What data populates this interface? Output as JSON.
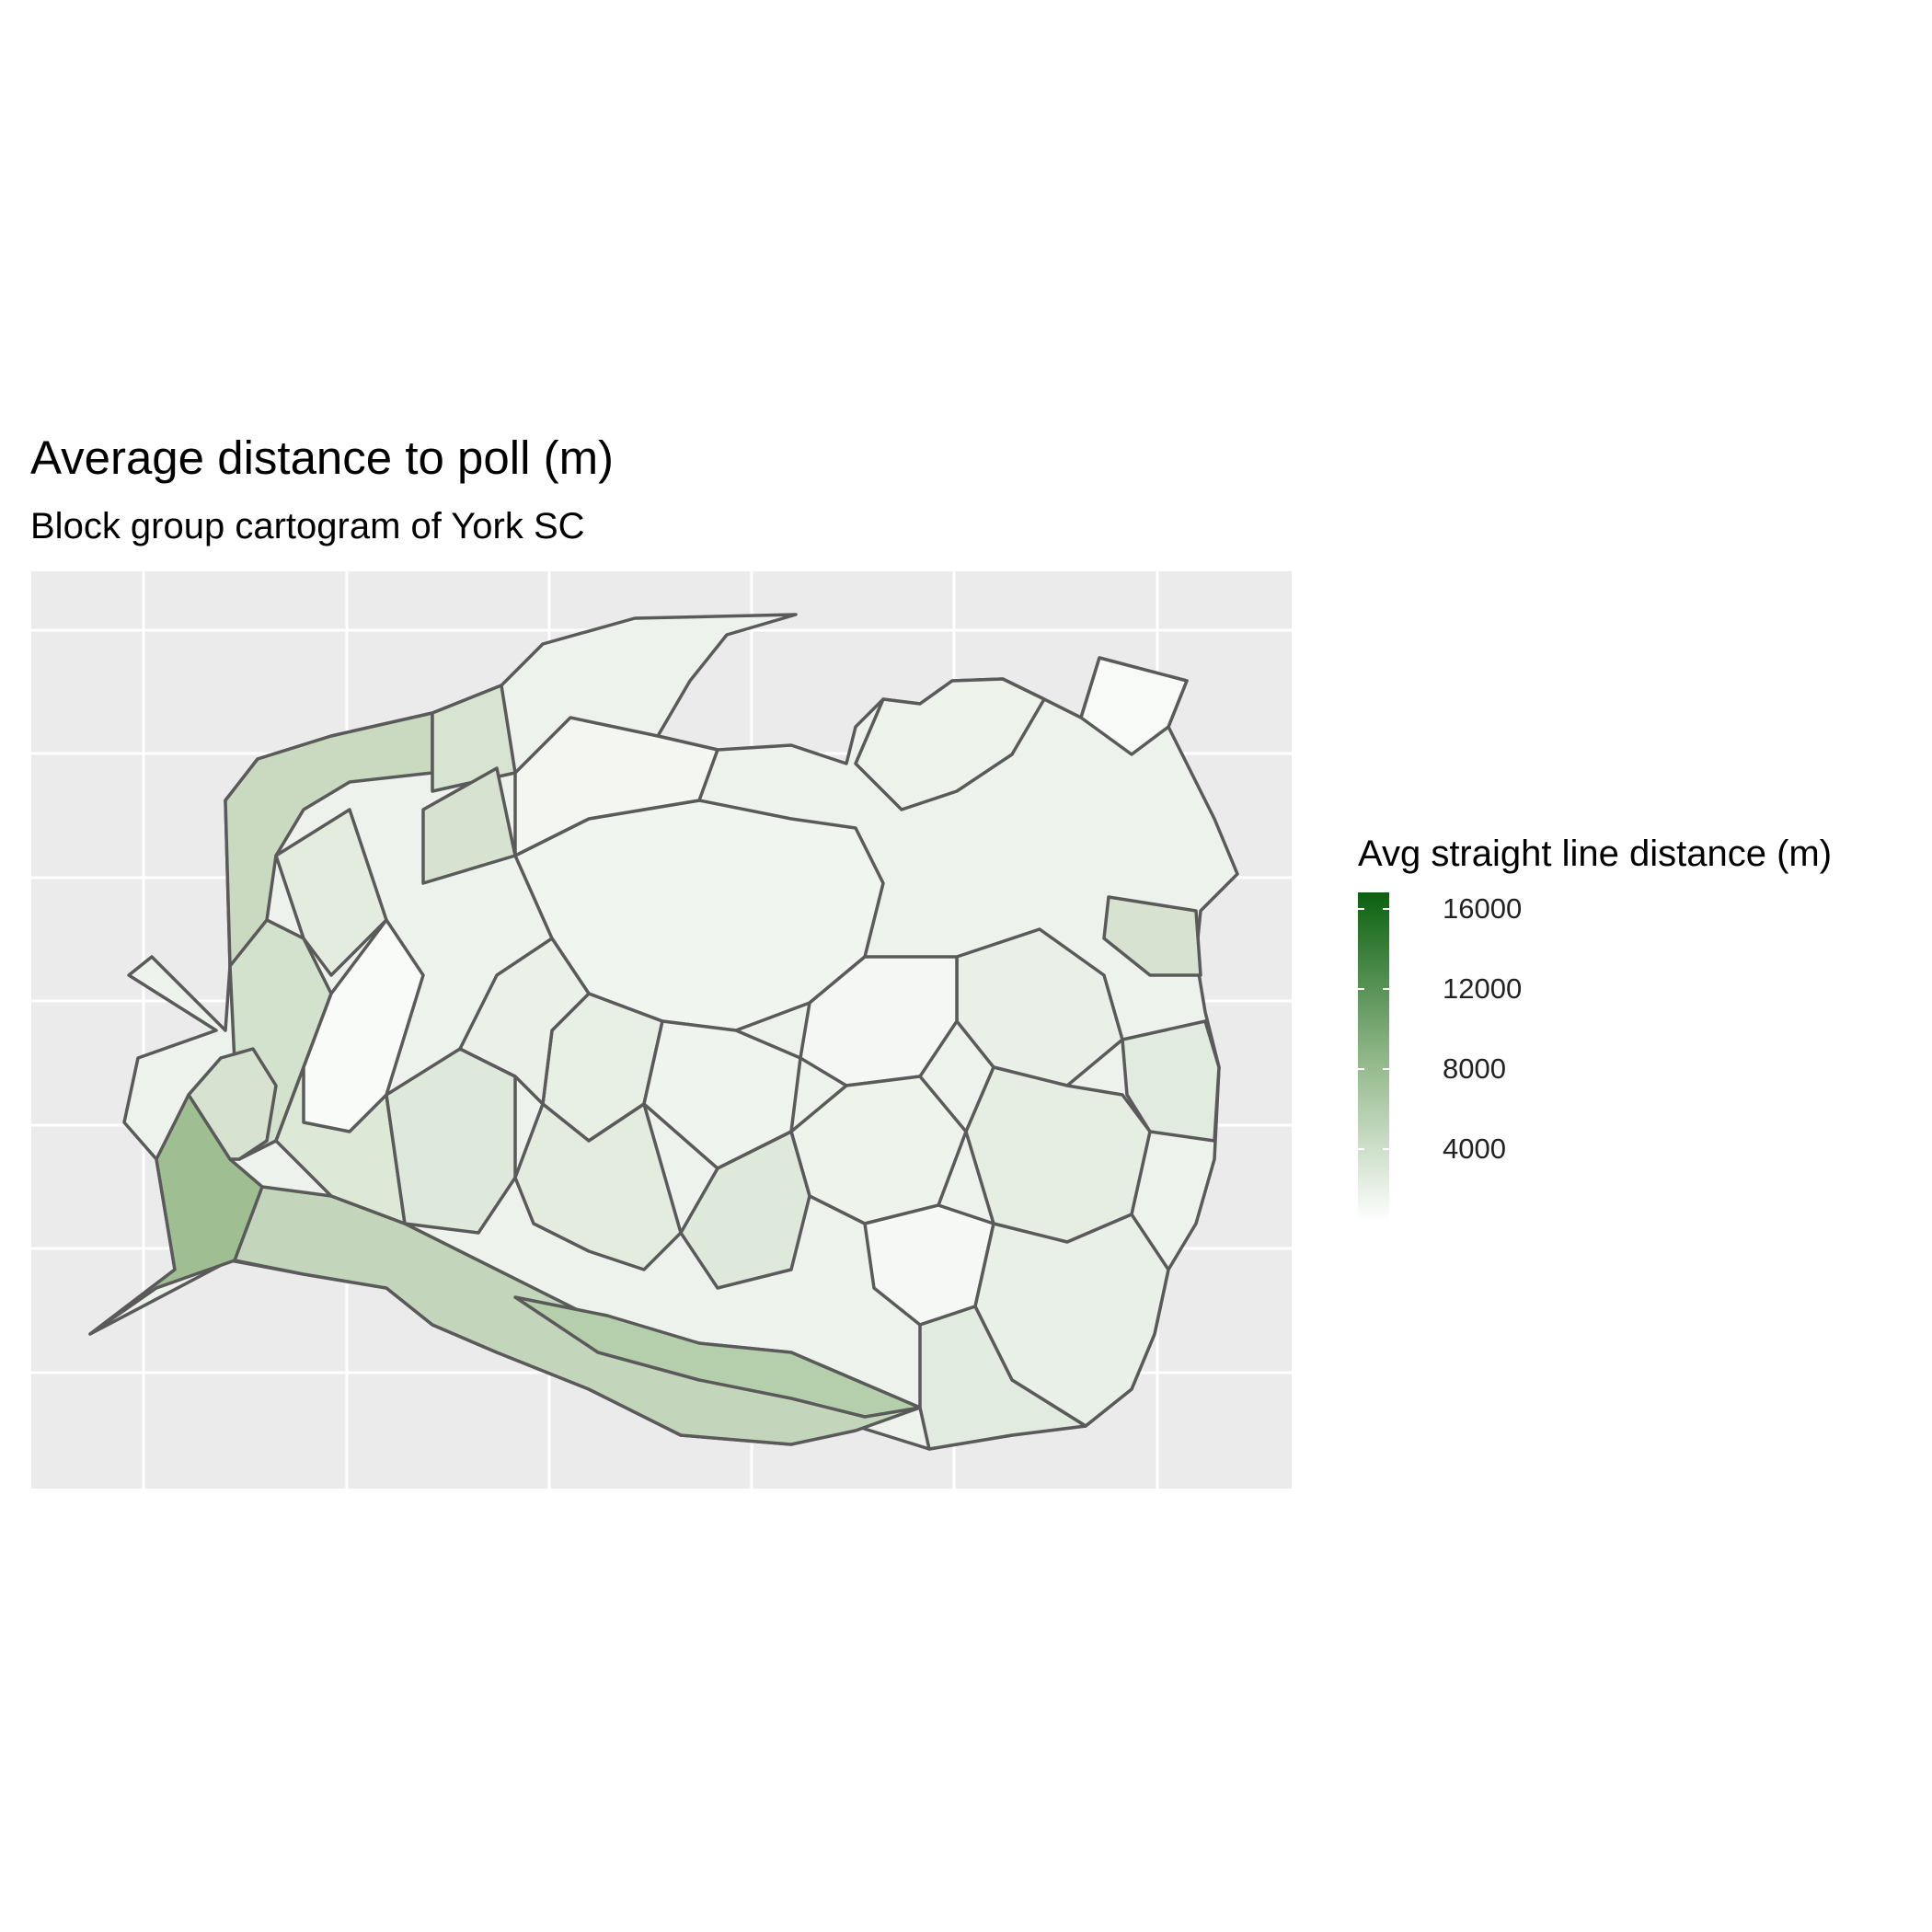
{
  "title": "Average distance to poll (m)",
  "subtitle": "Block group cartogram of York SC",
  "colors": {
    "panel_background": "#ebebeb",
    "grid": "#ffffff",
    "border": "#5a5a5a",
    "scale_low": "#ffffff",
    "scale_high": "#0b6110"
  },
  "legend": {
    "title": "Avg straight line distance (m)",
    "ticks": [
      {
        "label": "16000",
        "value": 16000
      },
      {
        "label": "12000",
        "value": 12000
      },
      {
        "label": "8000",
        "value": 8000
      },
      {
        "label": "4000",
        "value": 4000
      }
    ],
    "min": 0,
    "max": 16500
  },
  "chart_data": {
    "type": "choropleth",
    "title": "Average distance to poll (m)",
    "subtitle": "Block group cartogram of York SC",
    "color_scale": {
      "low": "#ffffff",
      "high": "#0b6110",
      "min": 0,
      "max": 16500
    },
    "grid": true,
    "legend_position": "right",
    "value_range_observed": [
      300,
      8000
    ]
  }
}
